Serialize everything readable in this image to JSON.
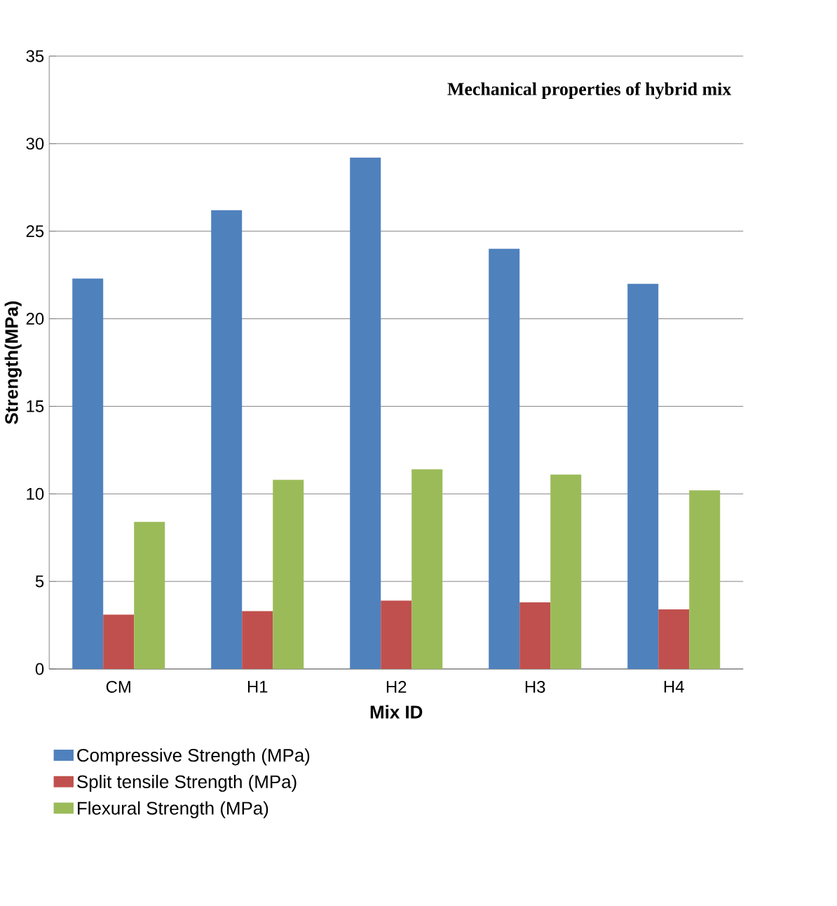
{
  "chart_data": {
    "type": "bar",
    "title": "Mechanical properties of hybrid mix",
    "xlabel": "Mix ID",
    "ylabel": "Strength(MPa)",
    "categories": [
      "CM",
      "H1",
      "H2",
      "H3",
      "H4"
    ],
    "series": [
      {
        "name": "Compressive Strength (MPa)",
        "color": "#4f81bd",
        "values": [
          22.3,
          26.2,
          29.2,
          24.0,
          22.0
        ]
      },
      {
        "name": "Split tensile Strength (MPa)",
        "color": "#c0504d",
        "values": [
          3.1,
          3.3,
          3.9,
          3.8,
          3.4
        ]
      },
      {
        "name": "Flexural Strength (MPa)",
        "color": "#9bbb59",
        "values": [
          8.4,
          10.8,
          11.4,
          11.1,
          10.2
        ]
      }
    ],
    "ylim": [
      0,
      35
    ],
    "yticks": [
      0,
      5,
      10,
      15,
      20,
      25,
      30,
      35
    ],
    "grid": "y",
    "legend": "bottom"
  }
}
